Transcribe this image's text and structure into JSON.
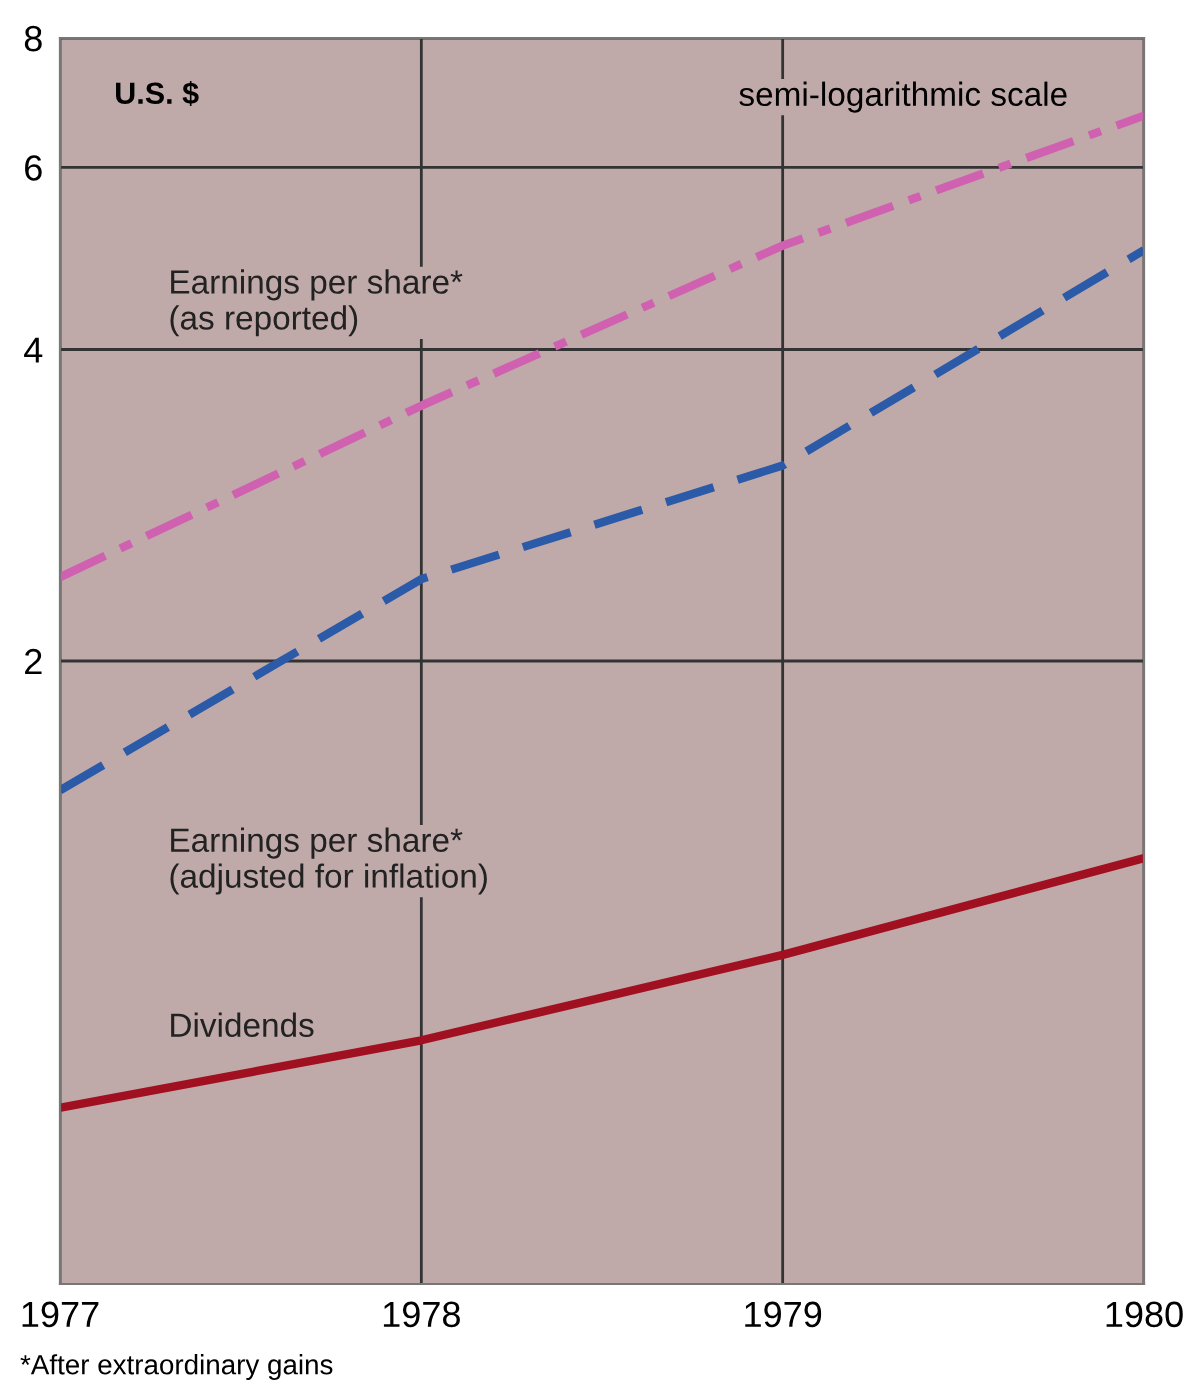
{
  "chart_data": {
    "type": "line",
    "x": [
      1977,
      1978,
      1979,
      1980
    ],
    "xlim": [
      1977,
      1980
    ],
    "xticks": [
      1977,
      1978,
      1979,
      1980
    ],
    "log": "y",
    "ylim": [
      0.5,
      8
    ],
    "yticks": [
      2,
      4,
      6,
      8
    ],
    "grid": true,
    "legend": false,
    "marker": "none",
    "series": [
      {
        "name": "Earnings per share*\n(as reported)",
        "color": "#d060b0",
        "line_style": "dashdot",
        "values": [
          2.41,
          3.53,
          5.04,
          6.73
        ]
      },
      {
        "name": "Earnings per share*\n(adjusted for inflation)",
        "color": "#2a5aa8",
        "line_style": "dashed",
        "values": [
          1.5,
          2.4,
          3.09,
          4.99
        ]
      },
      {
        "name": "Dividends",
        "color": "#a01020",
        "line_style": "solid",
        "values": [
          0.74,
          0.86,
          1.04,
          1.29
        ]
      }
    ],
    "annotations": [
      "U.S. $",
      "semi-logarithmic scale",
      "*After extraordinary gains"
    ]
  }
}
